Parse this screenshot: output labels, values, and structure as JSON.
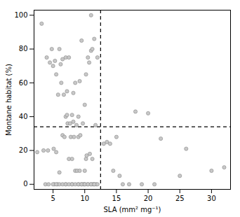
{
  "chart_data": {
    "type": "scatter",
    "x": [
      2.5,
      3.2,
      4.0,
      4.2,
      4.5,
      4.8,
      5.0,
      5.1,
      5.2,
      5.3,
      5.5,
      5.5,
      5.7,
      5.8,
      6.0,
      6.0,
      6.2,
      6.3,
      6.5,
      6.5,
      6.7,
      6.8,
      7.0,
      7.0,
      7.0,
      7.2,
      7.2,
      7.3,
      7.5,
      7.5,
      7.7,
      7.8,
      8.0,
      8.0,
      8.0,
      8.2,
      8.2,
      8.3,
      8.5,
      8.5,
      8.7,
      8.8,
      9.0,
      9.0,
      9.0,
      9.2,
      9.2,
      9.3,
      9.5,
      9.5,
      9.7,
      9.8,
      10.0,
      10.0,
      10.0,
      10.2,
      10.2,
      10.3,
      10.5,
      10.5,
      10.7,
      10.8,
      11.0,
      11.0,
      11.0,
      11.2,
      11.2,
      11.3,
      11.5,
      11.5,
      11.7,
      11.8,
      12.0,
      12.0,
      3.5,
      3.8,
      4.3,
      5.0,
      5.5,
      6.0,
      6.5,
      7.0,
      7.5,
      8.0,
      8.5,
      9.0,
      9.5,
      10.0,
      10.5,
      11.0,
      11.5,
      13.0,
      13.5,
      14.0,
      14.5,
      15.0,
      15.5,
      16.0,
      17.0,
      18.0,
      19.0,
      20.0,
      21.0,
      22.0,
      25.0,
      26.0,
      30.0,
      32.0
    ],
    "y": [
      19,
      95,
      75,
      20,
      72,
      80,
      70,
      21,
      0,
      73,
      65,
      19,
      0,
      53,
      80,
      0,
      71,
      60,
      74,
      29,
      53,
      28,
      75,
      40,
      0,
      41,
      55,
      36,
      75,
      15,
      36,
      28,
      41,
      15,
      0,
      54,
      37,
      28,
      60,
      8,
      35,
      8,
      40,
      28,
      0,
      61,
      8,
      29,
      85,
      0,
      36,
      0,
      47,
      8,
      0,
      65,
      15,
      17,
      75,
      0,
      72,
      18,
      100,
      79,
      0,
      80,
      15,
      0,
      86,
      0,
      35,
      0,
      75,
      0,
      20,
      0,
      0,
      0,
      0,
      7,
      0,
      0,
      0,
      0,
      0,
      0,
      0,
      0,
      0,
      0,
      0,
      24,
      25,
      24,
      8,
      28,
      5,
      0,
      0,
      43,
      0,
      42,
      0,
      27,
      5,
      21,
      8,
      10
    ],
    "vline_x": 12.5,
    "hline_y": 34,
    "xlim": [
      2,
      33
    ],
    "ylim": [
      -3,
      103
    ],
    "xticks": [
      5,
      10,
      15,
      20,
      25,
      30
    ],
    "yticks": [
      0,
      20,
      40,
      60,
      80,
      100
    ],
    "xlabel": "SLA (mm² mg⁻¹)",
    "ylabel": "Montane habitat (%)",
    "color": "#c8c8c8",
    "grid": false
  }
}
